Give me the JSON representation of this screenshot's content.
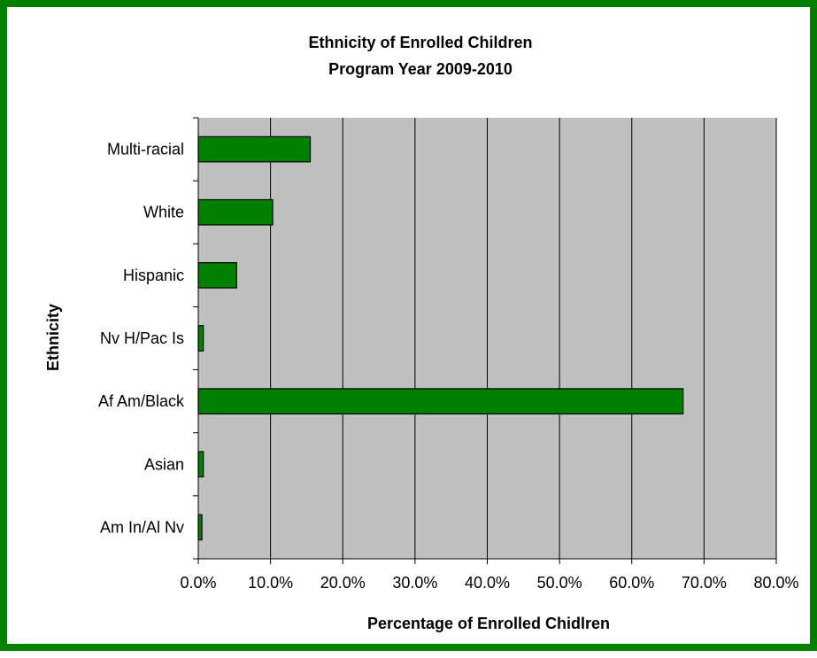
{
  "chart_data": {
    "type": "bar",
    "orientation": "horizontal",
    "title": "Ethnicity of Enrolled Children",
    "subtitle": "Program Year 2009-2010",
    "xlabel": "Percentage of Enrolled Chidlren",
    "ylabel": "Ethnicity",
    "categories": [
      "Multi-racial",
      "White",
      "Hispanic",
      "Nv H/Pac Is",
      "Af Am/Black",
      "Asian",
      "Am In/Al Nv"
    ],
    "values": [
      15.5,
      10.3,
      5.3,
      0.7,
      67.1,
      0.7,
      0.5
    ],
    "xlim": [
      0,
      80
    ],
    "x_ticks": [
      "0.0%",
      "10.0%",
      "20.0%",
      "30.0%",
      "40.0%",
      "50.0%",
      "60.0%",
      "70.0%",
      "80.0%"
    ],
    "grid": "vertical",
    "colors": {
      "bar_fill": "#008000",
      "bar_stroke": "#000000",
      "plot_background": "#c0c0c0",
      "gridline": "#000000",
      "frame_border": "#008000"
    }
  }
}
